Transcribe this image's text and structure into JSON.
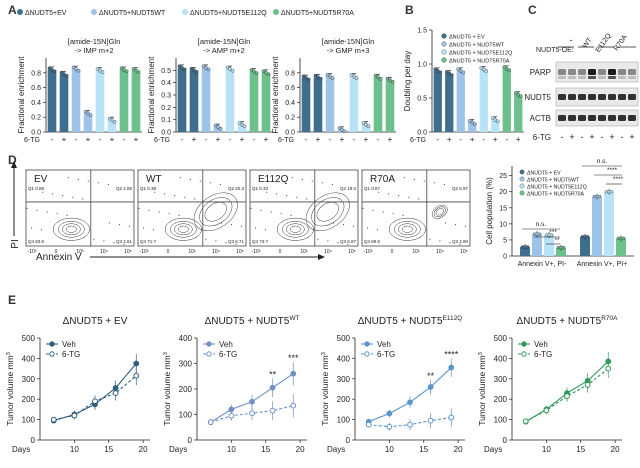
{
  "panels": {
    "A": "A",
    "B": "B",
    "C": "C",
    "D": "D",
    "E": "E"
  },
  "colors": {
    "EV": "#3f6f8f",
    "WT": "#9dc4e8",
    "E112Q": "#b8e2f6",
    "R70A": "#6cc08c",
    "EV_dark": "#2f5f7f",
    "E_line_EV": "#2e5e80",
    "E_line_WT": "#6f91c8",
    "E_line_E112Q": "#5b95c9",
    "E_line_R70A": "#2f9a5a"
  },
  "legendA": [
    "ΔNUDT5+EV",
    "ΔNUDT5+NUDT5WT",
    "ΔNUDT5+NUDT5E112Q",
    "ΔNUDT5+NUDT5R70A"
  ],
  "chart_data": [
    {
      "id": "A1",
      "type": "bar",
      "title": "[amide-15N]Gln -> IMP m+2",
      "ylabel": "Fractional enrichment",
      "ylim": [
        0,
        1.0
      ],
      "yticks": [
        0.0,
        0.2,
        0.4,
        0.6,
        0.8
      ],
      "xlabel": "6-TG",
      "categories": [
        "-",
        "+",
        "-",
        "+",
        "-",
        "+",
        "-",
        "+"
      ],
      "groups": [
        "EV",
        "EV",
        "WT",
        "WT",
        "E112Q",
        "E112Q",
        "R70A",
        "R70A"
      ],
      "values": [
        0.84,
        0.78,
        0.85,
        0.25,
        0.83,
        0.16,
        0.84,
        0.83
      ]
    },
    {
      "id": "A2",
      "type": "bar",
      "title": "[amide-15N]Gln -> AMP m+2",
      "ylabel": "Fractional enrichment",
      "ylim": [
        0,
        0.6
      ],
      "yticks": [
        0.0,
        0.1,
        0.2,
        0.3,
        0.4,
        0.5
      ],
      "xlabel": "6-TG",
      "categories": [
        "-",
        "+",
        "-",
        "+",
        "-",
        "+",
        "-",
        "+"
      ],
      "groups": [
        "EV",
        "EV",
        "WT",
        "WT",
        "E112Q",
        "E112Q",
        "R70A",
        "R70A"
      ],
      "values": [
        0.52,
        0.5,
        0.52,
        0.04,
        0.51,
        0.06,
        0.49,
        0.48
      ]
    },
    {
      "id": "A3",
      "type": "bar",
      "title": "[amide-15N]Gln -> GMP m+3",
      "ylabel": "Fractional enrichment",
      "ylim": [
        0,
        1.0
      ],
      "yticks": [
        0.0,
        0.2,
        0.4,
        0.6,
        0.8
      ],
      "xlabel": "6-TG",
      "categories": [
        "-",
        "+",
        "-",
        "+",
        "-",
        "+",
        "-",
        "+"
      ],
      "groups": [
        "EV",
        "EV",
        "WT",
        "WT",
        "E112Q",
        "E112Q",
        "R70A",
        "R70A"
      ],
      "values": [
        0.73,
        0.74,
        0.75,
        0.03,
        0.75,
        0.1,
        0.74,
        0.7
      ]
    },
    {
      "id": "B",
      "type": "bar",
      "title": "",
      "ylabel": "Doubling per day",
      "ylim": [
        0,
        1.5
      ],
      "yticks": [
        0.0,
        0.5,
        1.0,
        1.5
      ],
      "xlabel": "6-TG",
      "legend": [
        "ΔNUDT5 + EV",
        "ΔNUDT5 + NUDT5WT",
        "ΔNUDT5 + NUDT5E112Q",
        "ΔNUDT5 + NUDT5R70A"
      ],
      "categories": [
        "-",
        "+",
        "-",
        "+",
        "-",
        "+",
        "-",
        "+"
      ],
      "groups": [
        "EV",
        "EV",
        "WT",
        "WT",
        "E112Q",
        "E112Q",
        "R70A",
        "R70A"
      ],
      "values": [
        0.9,
        0.86,
        0.9,
        0.14,
        0.92,
        0.18,
        0.93,
        0.55
      ]
    },
    {
      "id": "D_bar",
      "type": "bar",
      "title": "",
      "ylabel": "Cell population (%)",
      "ylim": [
        0,
        28
      ],
      "yticks": [
        0,
        5,
        10,
        15,
        20,
        25
      ],
      "legend": [
        "ΔNUDT5 + EV",
        "ΔNUDT5 + NUDT5WT",
        "ΔNUDT5 + NUDT5E112Q",
        "ΔNUDT5 + NUDT5R70A"
      ],
      "categories": [
        "Annexin V+, PI-",
        "Annexin V+, PI+"
      ],
      "series": [
        {
          "name": "EV",
          "values": [
            2.8,
            6.0
          ]
        },
        {
          "name": "WT",
          "values": [
            6.8,
            18.5
          ]
        },
        {
          "name": "E112Q",
          "values": [
            6.5,
            20.0
          ]
        },
        {
          "name": "R70A",
          "values": [
            2.6,
            5.5
          ]
        }
      ],
      "significance": [
        "n.s.",
        "***",
        "**",
        "n.s.",
        "****",
        "****"
      ]
    },
    {
      "id": "D_flow",
      "type": "scatter",
      "xlabel": "Annexin V",
      "ylabel": "PI",
      "panels": [
        {
          "label": "EV",
          "q1": "0.89",
          "q2": "2.85",
          "q3": "2.61",
          "q4": "93.6"
        },
        {
          "label": "WT",
          "q1": "0.38",
          "q2": "20.3",
          "q3": "6.71",
          "q4": "71.7"
        },
        {
          "label": "E112Q",
          "q1": "0.33",
          "q2": "19.0",
          "q3": "6.97",
          "q4": "73.7"
        },
        {
          "label": "R70A",
          "q1": "0.67",
          "q2": "6.97",
          "q3": "2.90",
          "q4": "89.5"
        }
      ]
    },
    {
      "id": "E1",
      "type": "line",
      "title": "ΔNUDT5 + EV",
      "xlabel": "Days",
      "ylabel": "Tumor volume mm3",
      "xlim": [
        5,
        21
      ],
      "ylim": [
        0,
        500
      ],
      "xticks": [
        10,
        15,
        20
      ],
      "yticks": [
        0,
        100,
        200,
        300,
        400,
        500
      ],
      "x": [
        7,
        10,
        13,
        16,
        19
      ],
      "series": [
        {
          "name": "Veh",
          "values": [
            95,
            125,
            175,
            255,
            375
          ]
        },
        {
          "name": "6-TG",
          "values": [
            100,
            120,
            190,
            230,
            315
          ]
        }
      ]
    },
    {
      "id": "E2",
      "type": "line",
      "title": "ΔNUDT5 + NUDT5WT",
      "xlabel": "Days",
      "ylabel": "Tumor volume mm3",
      "xlim": [
        5,
        21
      ],
      "ylim": [
        0,
        400
      ],
      "xticks": [
        10,
        15,
        20
      ],
      "yticks": [
        0,
        100,
        200,
        300,
        400
      ],
      "x": [
        7,
        10,
        13,
        16,
        19
      ],
      "series": [
        {
          "name": "Veh",
          "values": [
            70,
            120,
            150,
            205,
            260
          ]
        },
        {
          "name": "6-TG",
          "values": [
            70,
            95,
            105,
            115,
            135
          ]
        }
      ],
      "significance": [
        "**",
        "***"
      ]
    },
    {
      "id": "E3",
      "type": "line",
      "title": "ΔNUDT5 + NUDT5E112Q",
      "xlabel": "Days",
      "ylabel": "Tumor volume mm3",
      "xlim": [
        5,
        21
      ],
      "ylim": [
        0,
        500
      ],
      "xticks": [
        10,
        15,
        20
      ],
      "yticks": [
        0,
        100,
        200,
        300,
        400,
        500
      ],
      "x": [
        7,
        10,
        13,
        16,
        19
      ],
      "series": [
        {
          "name": "Veh",
          "values": [
            90,
            130,
            185,
            260,
            355
          ]
        },
        {
          "name": "6-TG",
          "values": [
            75,
            65,
            75,
            95,
            110
          ]
        }
      ],
      "significance": [
        "**",
        "****"
      ]
    },
    {
      "id": "E4",
      "type": "line",
      "title": "ΔNUDT5 + NUDT5R70A",
      "xlabel": "Days",
      "ylabel": "Tumor volume mm3",
      "xlim": [
        5,
        21
      ],
      "ylim": [
        0,
        500
      ],
      "xticks": [
        10,
        15,
        20
      ],
      "yticks": [
        0,
        100,
        200,
        300,
        400,
        500
      ],
      "x": [
        7,
        10,
        13,
        16,
        19
      ],
      "series": [
        {
          "name": "Veh",
          "values": [
            90,
            150,
            230,
            290,
            385
          ]
        },
        {
          "name": "6-TG",
          "values": [
            92,
            145,
            215,
            270,
            350
          ]
        }
      ]
    }
  ],
  "blot": {
    "header": "NUDT5-OE:",
    "lanes": [
      "-",
      "WT",
      "E112Q",
      "R70A"
    ],
    "rows": [
      "PARP",
      "NUDT5",
      "ACTB"
    ],
    "tg_label": "6-TG",
    "tg_signs": [
      "-",
      "+",
      "-",
      "+",
      "-",
      "+",
      "-",
      "+"
    ]
  }
}
